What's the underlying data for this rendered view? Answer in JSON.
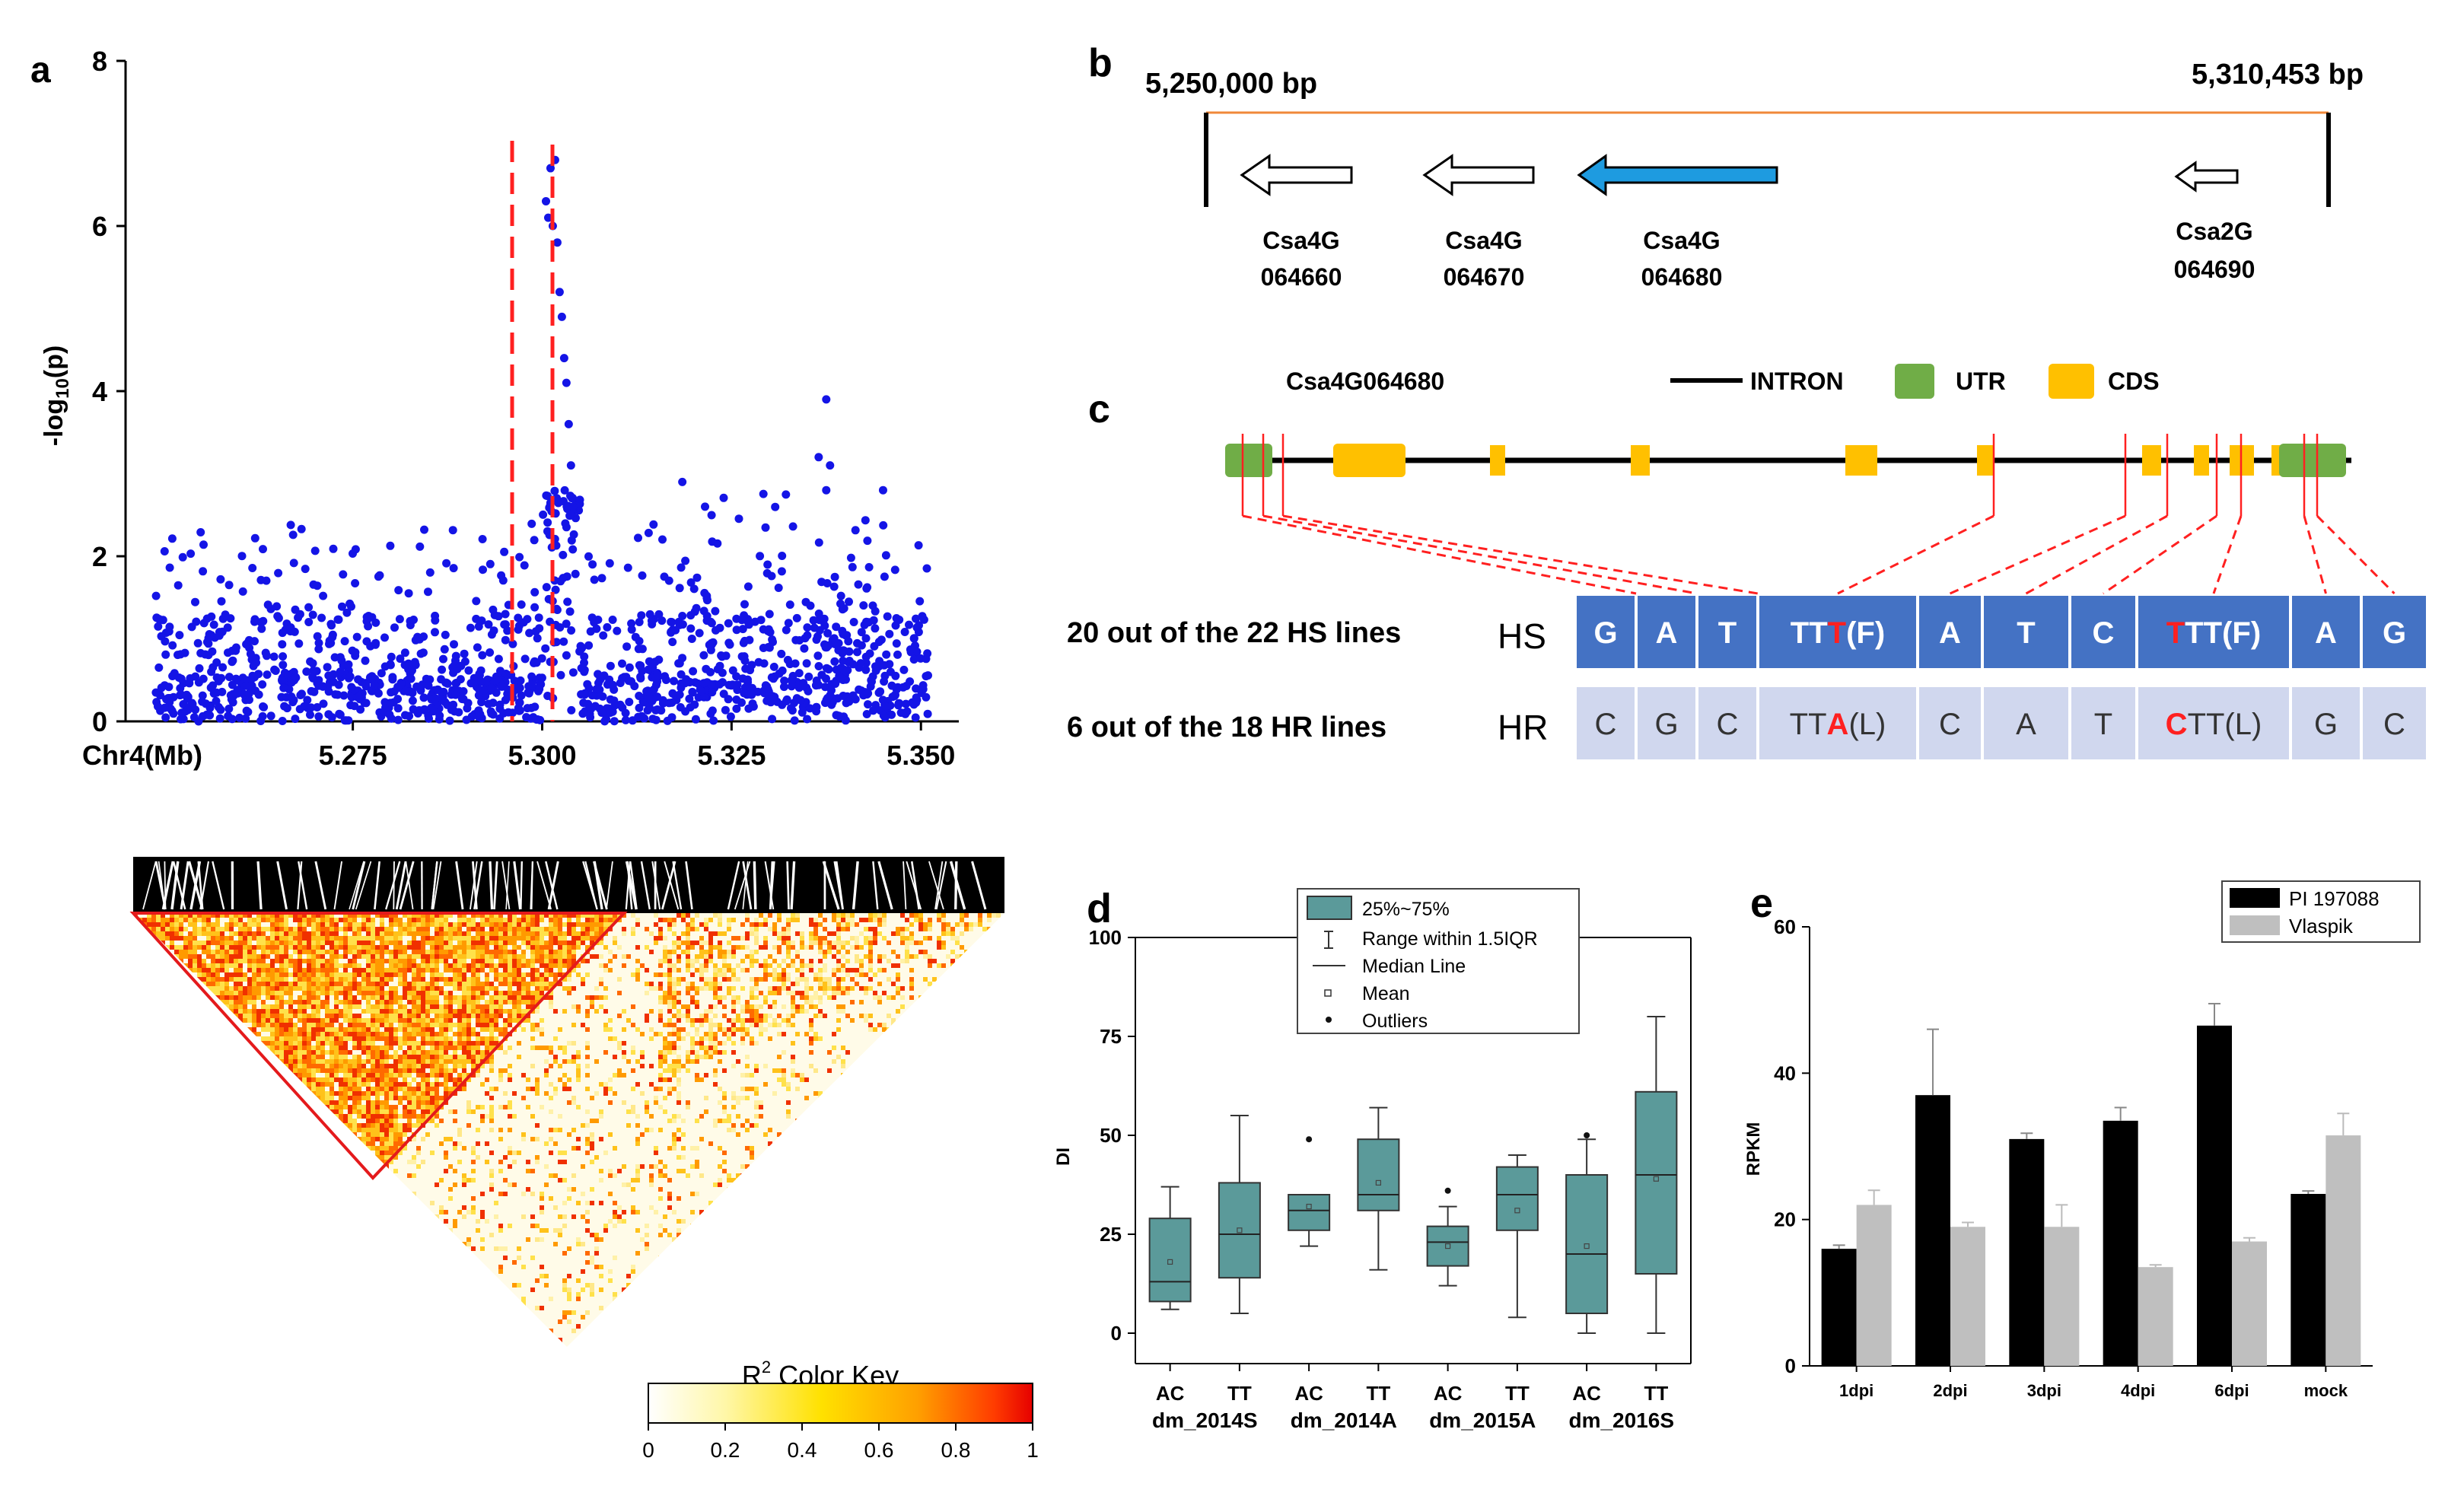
{
  "panel_labels": {
    "a": "a",
    "b": "b",
    "c": "c",
    "d": "d",
    "e": "e"
  },
  "colors": {
    "manhattan_points": "#1414e6",
    "highlight": "#ff2020",
    "hs_fill": "#4472c4",
    "hr_fill": "#d0d7ee",
    "gene_blue": "#1e9be0",
    "utr": "#70ad47",
    "cds": "#ffc000",
    "box": "#5b9a9a",
    "bar_pi": "#000000",
    "bar_vl": "#bfbfbf",
    "ld_outline": "#e41a1c"
  },
  "chart_data": [
    {
      "type": "scatter",
      "panel": "a",
      "title": "",
      "ylabel": "-log10(p)",
      "xlabel": "Chr4(Mb)",
      "xlim": [
        5.245,
        5.355
      ],
      "ylim": [
        0,
        8
      ],
      "y_ticks": [
        "0",
        "2",
        "4",
        "6",
        "8"
      ],
      "x_ticks": [
        "5.275",
        "5.300",
        "5.325",
        "5.350"
      ],
      "x_tick_values": [
        5.275,
        5.3,
        5.325,
        5.35
      ],
      "peak_window": [
        5.3,
        5.305
      ],
      "highlight_x": [
        5.3005,
        5.3008,
        5.3011,
        5.3014,
        5.3017,
        5.302,
        5.3023,
        5.3026,
        5.3029,
        5.3032,
        5.3035,
        5.3038
      ],
      "highlight_y": [
        6.3,
        6.1,
        6.7,
        6.0,
        6.8,
        5.8,
        5.2,
        4.9,
        4.4,
        4.1,
        3.6,
        3.1
      ]
    },
    {
      "type": "box",
      "panel": "d",
      "ylabel": "DI",
      "ylim": [
        0,
        100
      ],
      "y_ticks": [
        "0",
        "25",
        "50",
        "75",
        "100"
      ],
      "categories": [
        "AC",
        "TT",
        "AC",
        "TT",
        "AC",
        "TT",
        "AC",
        "TT"
      ],
      "groups": [
        "dm_2014S",
        "dm_2014A",
        "dm_2015A",
        "dm_2016S"
      ],
      "series": [
        {
          "name": "AC dm_2014S",
          "q1": 8,
          "median": 13,
          "q3": 29,
          "min": 6,
          "max": 37,
          "mean": 18
        },
        {
          "name": "TT dm_2014S",
          "q1": 14,
          "median": 25,
          "q3": 38,
          "min": 5,
          "max": 55,
          "mean": 26
        },
        {
          "name": "AC dm_2014A",
          "q1": 26,
          "median": 31,
          "q3": 35,
          "min": 22,
          "max": 35,
          "mean": 32,
          "outlier": 49
        },
        {
          "name": "TT dm_2014A",
          "q1": 31,
          "median": 35,
          "q3": 49,
          "min": 16,
          "max": 57,
          "mean": 38
        },
        {
          "name": "AC dm_2015A",
          "q1": 17,
          "median": 23,
          "q3": 27,
          "min": 12,
          "max": 32,
          "mean": 22,
          "outlier": 36
        },
        {
          "name": "TT dm_2015A",
          "q1": 26,
          "median": 35,
          "q3": 42,
          "min": 4,
          "max": 45,
          "mean": 31
        },
        {
          "name": "AC dm_2016S",
          "q1": 5,
          "median": 20,
          "q3": 40,
          "min": 0,
          "max": 49,
          "mean": 22,
          "outlier": 50
        },
        {
          "name": "TT dm_2016S",
          "q1": 15,
          "median": 40,
          "q3": 61,
          "min": 0,
          "max": 80,
          "mean": 39
        }
      ],
      "legend": [
        "25%~75%",
        "Range within 1.5IQR",
        "Median Line",
        "Mean",
        "Outliers"
      ]
    },
    {
      "type": "bar",
      "panel": "e",
      "ylabel": "RPKM",
      "ylim": [
        0,
        60
      ],
      "y_ticks": [
        "0",
        "20",
        "40",
        "60"
      ],
      "categories": [
        "1dpi",
        "2dpi",
        "3dpi",
        "4dpi",
        "6dpi",
        "mock"
      ],
      "series": [
        {
          "name": "PI 197088",
          "values": [
            16,
            37,
            31,
            33.5,
            46.5,
            23.5
          ],
          "errors": [
            0.5,
            9,
            0.8,
            1.8,
            3,
            0.4
          ]
        },
        {
          "name": "Vlaspik",
          "values": [
            22,
            19,
            19,
            13.5,
            17,
            31.5
          ],
          "errors": [
            2,
            0.6,
            3,
            0.3,
            0.5,
            3
          ]
        }
      ]
    }
  ],
  "panel_b": {
    "start": "5,250,000 bp",
    "end": "5,310,453 bp",
    "genes": [
      {
        "line1": "Csa4G",
        "line2": "064660"
      },
      {
        "line1": "Csa4G",
        "line2": "064670"
      },
      {
        "line1": "Csa4G",
        "line2": "064680"
      },
      {
        "line1": "Csa2G",
        "line2": "064690"
      }
    ]
  },
  "panel_c": {
    "gene": "Csa4G064680",
    "legend": {
      "intron": "INTRON",
      "utr": "UTR",
      "cds": "CDS"
    },
    "hs_label": "20 out of the 22 HS lines",
    "hs_tag": "HS",
    "hr_label": "6   out of the 18 HR lines",
    "hr_tag": "HR",
    "hs_cells": [
      {
        "pre": "G",
        "red": "",
        "post": ""
      },
      {
        "pre": "A",
        "red": "",
        "post": ""
      },
      {
        "pre": "T",
        "red": "",
        "post": ""
      },
      {
        "pre": "TT",
        "red": "T",
        "post": "(F)"
      },
      {
        "pre": "A",
        "red": "",
        "post": ""
      },
      {
        "pre": "T",
        "red": "",
        "post": ""
      },
      {
        "pre": "C",
        "red": "",
        "post": ""
      },
      {
        "pre": "",
        "red": "T",
        "post": "TT(F)"
      },
      {
        "pre": "A",
        "red": "",
        "post": ""
      },
      {
        "pre": "G",
        "red": "",
        "post": ""
      }
    ],
    "hr_cells": [
      {
        "pre": "C",
        "red": "",
        "post": ""
      },
      {
        "pre": "G",
        "red": "",
        "post": ""
      },
      {
        "pre": "C",
        "red": "",
        "post": ""
      },
      {
        "pre": "TT",
        "red": "A",
        "post": "(L)"
      },
      {
        "pre": "C",
        "red": "",
        "post": ""
      },
      {
        "pre": "A",
        "red": "",
        "post": ""
      },
      {
        "pre": "T",
        "red": "",
        "post": ""
      },
      {
        "pre": "",
        "red": "C",
        "post": "TT(L)"
      },
      {
        "pre": "G",
        "red": "",
        "post": ""
      },
      {
        "pre": "C",
        "red": "",
        "post": ""
      }
    ]
  },
  "ld": {
    "key_title": "R",
    "key_sup": "2",
    "key_title_rest": " Color Key",
    "key_ticks": [
      "0",
      "0.2",
      "0.4",
      "0.6",
      "0.8",
      "1"
    ]
  }
}
